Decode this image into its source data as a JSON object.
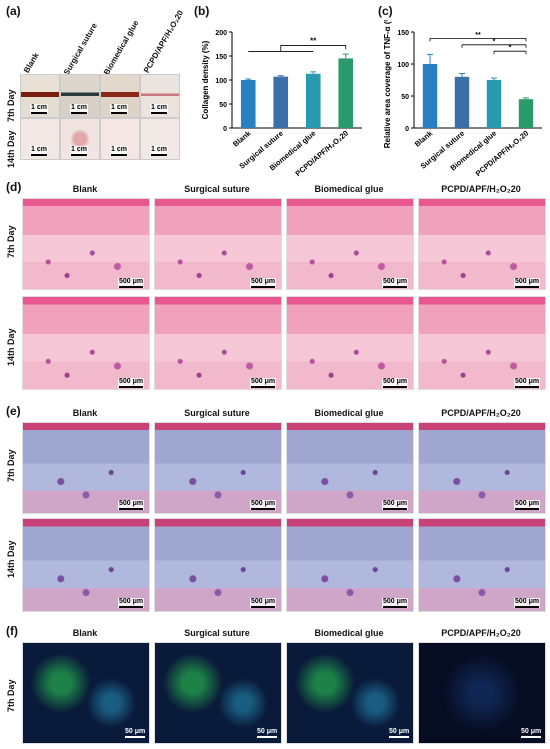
{
  "panels": {
    "a": "(a)",
    "b": "(b)",
    "c": "(c)",
    "d": "(d)",
    "e": "(e)",
    "f": "(f)"
  },
  "groups": [
    "Blank",
    "Surgical suture",
    "Biomedical glue",
    "PCPD/APF/H₂O₂20"
  ],
  "day7": "7th Day",
  "day14": "14th Day",
  "scale_photo": "1 cm",
  "scale_hist": "500 μm",
  "scale_fluor": "50 μm",
  "chart_data": [
    {
      "type": "bar",
      "panel": "b",
      "ylabel": "Collagen density (%)",
      "categories": [
        "Blank",
        "Surgical suture",
        "Biomedical glue",
        "PCPD/APF/H₂O₂20"
      ],
      "values": [
        100,
        107,
        113,
        145
      ],
      "errors": [
        2,
        2,
        4,
        9
      ],
      "colors": [
        "#2a7fc0",
        "#3a6fa8",
        "#2a9ab0",
        "#2a9a6a"
      ],
      "ylim": [
        0,
        200
      ],
      "yticks": [
        0,
        50,
        100,
        150,
        200
      ],
      "significance": "**"
    },
    {
      "type": "bar",
      "panel": "c",
      "ylabel": "Relative area coverage of TNF-α (%)",
      "categories": [
        "Blank",
        "Surgical suture",
        "Biomedical glue",
        "PCPD/APF/H₂O₂20"
      ],
      "values": [
        100,
        80,
        75,
        45
      ],
      "errors": [
        15,
        5,
        3,
        2
      ],
      "colors": [
        "#2a7fc0",
        "#3a6fa8",
        "#2a9ab0",
        "#2a9a6a"
      ],
      "ylim": [
        0,
        150
      ],
      "yticks": [
        0,
        50,
        100,
        150
      ],
      "significance": [
        "**",
        "*",
        "*"
      ]
    }
  ]
}
